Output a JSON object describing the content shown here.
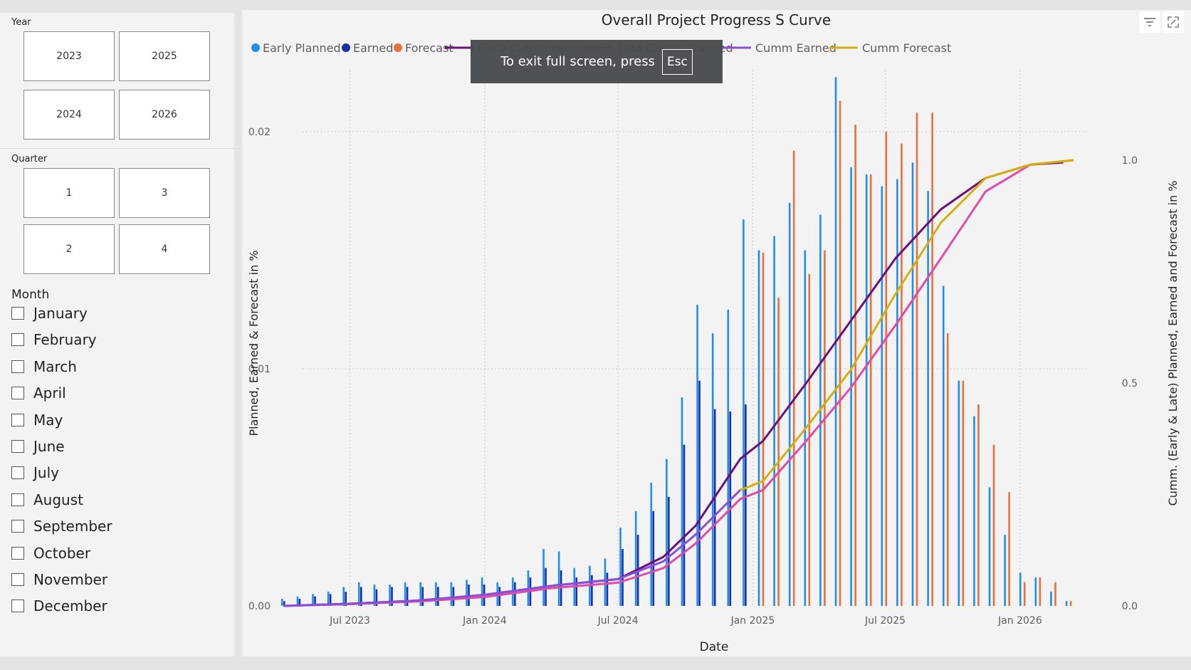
{
  "filters": {
    "year": {
      "title": "Year",
      "options": [
        "2023",
        "2025",
        "2024",
        "2026"
      ]
    },
    "quarter": {
      "title": "Quarter",
      "options": [
        "1",
        "3",
        "2",
        "4"
      ]
    },
    "month": {
      "title": "Month",
      "options": [
        "January",
        "February",
        "March",
        "April",
        "May",
        "June",
        "July",
        "August",
        "September",
        "October",
        "November",
        "December"
      ]
    }
  },
  "toolbar": {
    "filter_icon": "filter-icon",
    "focus_icon": "focus-mode-icon"
  },
  "toast": {
    "text": "To exit full screen, press",
    "key": "Esc"
  },
  "colors": {
    "early_planned": "#1f8ef1",
    "earned": "#1a2fa6",
    "forecast": "#e8703a",
    "early_cumm_planned": "#6b0f7a",
    "late_cumm_planned": "#e04aa8",
    "cumm_earned": "#8a4fd8",
    "cumm_forecast": "#d6b00a"
  },
  "chart_data": {
    "type": "bar",
    "title": "Overall Project Progress S Curve",
    "xlabel": "Date",
    "ylabel": "Planned, Earned & Forecast in %",
    "y2label": "Cumm. (Early & Late) Planned, Earned and Forecast in %",
    "x_ticks": [
      "Jul 2023",
      "Jan 2024",
      "Jul 2024",
      "Jan 2025",
      "Jul 2025",
      "Jan 2026"
    ],
    "y_ticks": [
      "0.00",
      "0.01",
      "0.02"
    ],
    "y2_ticks": [
      "0.0",
      "0.5",
      "1.0"
    ],
    "ylim": [
      0,
      0.0223
    ],
    "y2lim": [
      0,
      1.0
    ],
    "grid": true,
    "legend_position": "top",
    "legend": [
      "Early Planned",
      "Earned",
      "Forecast",
      "Early Cumm Planned",
      "Late Cumm Planned",
      "Cumm Earned",
      "Cumm Forecast"
    ],
    "x_domain": [
      "2023-04-01",
      "2026-03-15"
    ],
    "bars": [
      {
        "date": "2023-04-01",
        "early_planned": 0.0003,
        "earned": 0.0002
      },
      {
        "date": "2023-04-22",
        "early_planned": 0.0004,
        "earned": 0.0003
      },
      {
        "date": "2023-05-13",
        "early_planned": 0.0005,
        "earned": 0.0004
      },
      {
        "date": "2023-06-03",
        "early_planned": 0.0006,
        "earned": 0.0005
      },
      {
        "date": "2023-06-24",
        "early_planned": 0.0008,
        "earned": 0.0006
      },
      {
        "date": "2023-07-15",
        "early_planned": 0.001,
        "earned": 0.0008
      },
      {
        "date": "2023-08-05",
        "early_planned": 0.0009,
        "earned": 0.0007
      },
      {
        "date": "2023-08-26",
        "early_planned": 0.0009,
        "earned": 0.0008
      },
      {
        "date": "2023-09-16",
        "early_planned": 0.001,
        "earned": 0.0008
      },
      {
        "date": "2023-10-07",
        "early_planned": 0.001,
        "earned": 0.0008
      },
      {
        "date": "2023-10-28",
        "early_planned": 0.001,
        "earned": 0.0008
      },
      {
        "date": "2023-11-18",
        "early_planned": 0.001,
        "earned": 0.0008
      },
      {
        "date": "2023-12-09",
        "early_planned": 0.0011,
        "earned": 0.0009
      },
      {
        "date": "2023-12-30",
        "early_planned": 0.0012,
        "earned": 0.0009
      },
      {
        "date": "2024-01-20",
        "early_planned": 0.001,
        "earned": 0.0008
      },
      {
        "date": "2024-02-10",
        "early_planned": 0.0012,
        "earned": 0.001
      },
      {
        "date": "2024-03-02",
        "early_planned": 0.0015,
        "earned": 0.0012
      },
      {
        "date": "2024-03-23",
        "early_planned": 0.0024,
        "earned": 0.0016
      },
      {
        "date": "2024-04-13",
        "early_planned": 0.0023,
        "earned": 0.0015
      },
      {
        "date": "2024-05-04",
        "early_planned": 0.0016,
        "earned": 0.0012
      },
      {
        "date": "2024-05-25",
        "early_planned": 0.0017,
        "earned": 0.0013
      },
      {
        "date": "2024-06-15",
        "early_planned": 0.002,
        "earned": 0.0014
      },
      {
        "date": "2024-07-06",
        "early_planned": 0.0033,
        "earned": 0.0024
      },
      {
        "date": "2024-07-27",
        "early_planned": 0.004,
        "earned": 0.003
      },
      {
        "date": "2024-08-17",
        "early_planned": 0.0052,
        "earned": 0.004
      },
      {
        "date": "2024-09-07",
        "early_planned": 0.0062,
        "earned": 0.0046
      },
      {
        "date": "2024-09-28",
        "early_planned": 0.0088,
        "earned": 0.0068
      },
      {
        "date": "2024-10-19",
        "early_planned": 0.0127,
        "earned": 0.0095
      },
      {
        "date": "2024-11-09",
        "early_planned": 0.0115,
        "earned": 0.0083
      },
      {
        "date": "2024-11-30",
        "early_planned": 0.0125,
        "earned": 0.0082
      },
      {
        "date": "2024-12-21",
        "early_planned": 0.0163,
        "earned": 0.0085
      },
      {
        "date": "2025-01-11",
        "early_planned": 0.015,
        "forecast": 0.0149
      },
      {
        "date": "2025-02-01",
        "early_planned": 0.0156,
        "forecast": 0.013
      },
      {
        "date": "2025-02-22",
        "early_planned": 0.017,
        "forecast": 0.0192
      },
      {
        "date": "2025-03-15",
        "early_planned": 0.015,
        "forecast": 0.014
      },
      {
        "date": "2025-04-05",
        "early_planned": 0.0165,
        "forecast": 0.015
      },
      {
        "date": "2025-04-26",
        "early_planned": 0.0223,
        "forecast": 0.0213
      },
      {
        "date": "2025-05-17",
        "early_planned": 0.0185,
        "forecast": 0.0203
      },
      {
        "date": "2025-06-07",
        "early_planned": 0.0182,
        "forecast": 0.0182
      },
      {
        "date": "2025-06-28",
        "early_planned": 0.0177,
        "forecast": 0.02
      },
      {
        "date": "2025-07-19",
        "early_planned": 0.018,
        "forecast": 0.0195
      },
      {
        "date": "2025-08-09",
        "early_planned": 0.0187,
        "forecast": 0.0208
      },
      {
        "date": "2025-08-30",
        "early_planned": 0.0175,
        "forecast": 0.0208
      },
      {
        "date": "2025-09-20",
        "early_planned": 0.0135,
        "forecast": 0.0115
      },
      {
        "date": "2025-10-11",
        "early_planned": 0.0095,
        "forecast": 0.0095
      },
      {
        "date": "2025-11-01",
        "early_planned": 0.008,
        "forecast": 0.0085
      },
      {
        "date": "2025-11-22",
        "early_planned": 0.005,
        "forecast": 0.0068
      },
      {
        "date": "2025-12-13",
        "early_planned": 0.003,
        "forecast": 0.0048
      },
      {
        "date": "2026-01-03",
        "early_planned": 0.0014,
        "forecast": 0.001
      },
      {
        "date": "2026-01-24",
        "early_planned": 0.0012,
        "forecast": 0.0012
      },
      {
        "date": "2026-02-14",
        "early_planned": 0.0006,
        "forecast": 0.001
      },
      {
        "date": "2026-03-07",
        "early_planned": 0.0002,
        "forecast": 0.0002
      }
    ],
    "series": [
      {
        "name": "Early Cumm Planned",
        "axis": "right",
        "points": [
          [
            "2023-04-01",
            0.0
          ],
          [
            "2023-07-01",
            0.005
          ],
          [
            "2023-10-01",
            0.012
          ],
          [
            "2024-01-01",
            0.025
          ],
          [
            "2024-04-01",
            0.045
          ],
          [
            "2024-07-01",
            0.06
          ],
          [
            "2024-09-01",
            0.11
          ],
          [
            "2024-10-15",
            0.18
          ],
          [
            "2024-12-15",
            0.33
          ],
          [
            "2025-01-15",
            0.37
          ],
          [
            "2025-03-15",
            0.5
          ],
          [
            "2025-05-15",
            0.64
          ],
          [
            "2025-07-15",
            0.78
          ],
          [
            "2025-09-15",
            0.89
          ],
          [
            "2025-11-15",
            0.96
          ],
          [
            "2026-01-15",
            0.99
          ],
          [
            "2026-03-01",
            0.995
          ]
        ]
      },
      {
        "name": "Late Cumm Planned",
        "axis": "right",
        "points": [
          [
            "2023-04-01",
            0.0
          ],
          [
            "2023-07-01",
            0.004
          ],
          [
            "2023-10-01",
            0.01
          ],
          [
            "2024-01-01",
            0.02
          ],
          [
            "2024-04-01",
            0.04
          ],
          [
            "2024-07-01",
            0.052
          ],
          [
            "2024-09-01",
            0.085
          ],
          [
            "2024-10-15",
            0.14
          ],
          [
            "2024-12-15",
            0.24
          ],
          [
            "2025-01-15",
            0.26
          ],
          [
            "2025-03-15",
            0.37
          ],
          [
            "2025-05-15",
            0.49
          ],
          [
            "2025-07-15",
            0.63
          ],
          [
            "2025-09-15",
            0.78
          ],
          [
            "2025-11-15",
            0.93
          ],
          [
            "2026-01-15",
            0.99
          ],
          [
            "2026-03-15",
            1.0
          ]
        ]
      },
      {
        "name": "Cumm Earned",
        "axis": "right",
        "points": [
          [
            "2023-04-01",
            0.0
          ],
          [
            "2023-07-01",
            0.005
          ],
          [
            "2023-10-01",
            0.012
          ],
          [
            "2024-01-01",
            0.025
          ],
          [
            "2024-04-01",
            0.045
          ],
          [
            "2024-07-01",
            0.06
          ],
          [
            "2024-09-01",
            0.1
          ],
          [
            "2024-10-15",
            0.16
          ],
          [
            "2024-12-15",
            0.26
          ]
        ]
      },
      {
        "name": "Cumm Forecast",
        "axis": "right",
        "points": [
          [
            "2024-12-15",
            0.26
          ],
          [
            "2025-01-15",
            0.28
          ],
          [
            "2025-03-15",
            0.4
          ],
          [
            "2025-05-15",
            0.53
          ],
          [
            "2025-07-15",
            0.7
          ],
          [
            "2025-09-15",
            0.86
          ],
          [
            "2025-11-15",
            0.96
          ],
          [
            "2026-01-15",
            0.99
          ],
          [
            "2026-03-15",
            1.0
          ]
        ]
      }
    ]
  }
}
